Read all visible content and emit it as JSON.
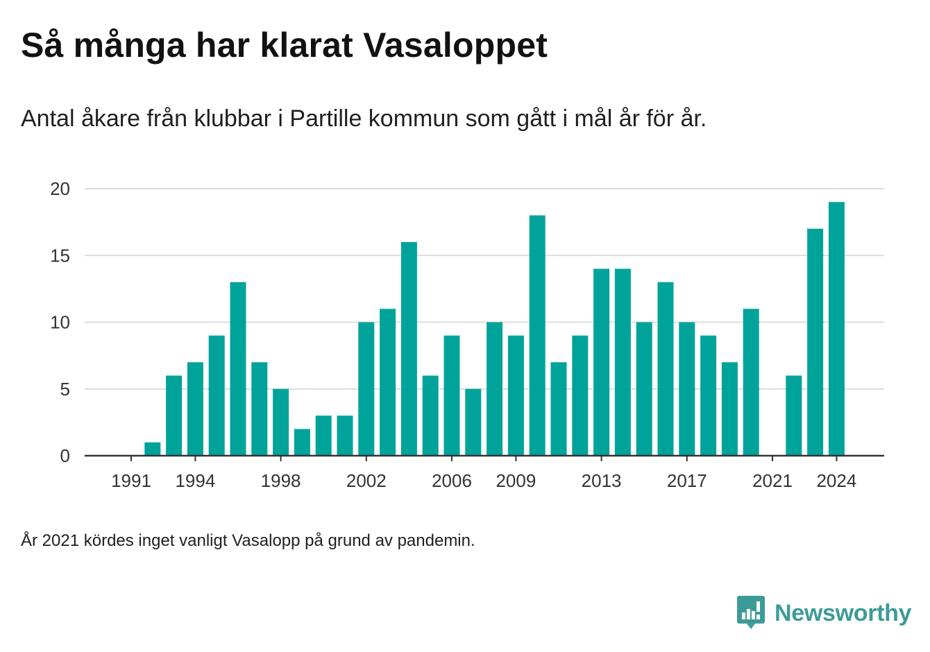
{
  "title": "Så många har klarat Vasaloppet",
  "subtitle": "Antal åkare från klubbar i Partille kommun som gått i mål år för år.",
  "note": "År 2021 kördes inget vanligt Vasalopp på grund av pandemin.",
  "brand": {
    "name": "Newsworthy",
    "icon": "newsworthy-logo-icon",
    "color": "#3d9b97"
  },
  "colors": {
    "bar": "#00a39a",
    "grid": "#dcdcdc",
    "axis": "#333333"
  },
  "chart_data": {
    "type": "bar",
    "categories": [
      1991,
      1992,
      1993,
      1994,
      1995,
      1996,
      1997,
      1998,
      1999,
      2000,
      2001,
      2002,
      2003,
      2004,
      2005,
      2006,
      2007,
      2008,
      2009,
      2010,
      2011,
      2012,
      2013,
      2014,
      2015,
      2016,
      2017,
      2018,
      2019,
      2020,
      2021,
      2022,
      2023,
      2024
    ],
    "values": [
      0,
      1,
      6,
      7,
      9,
      13,
      7,
      5,
      2,
      3,
      3,
      10,
      11,
      16,
      6,
      9,
      5,
      10,
      9,
      18,
      7,
      9,
      14,
      14,
      10,
      13,
      10,
      9,
      7,
      11,
      0,
      6,
      17,
      19
    ],
    "x_ticks": [
      "1991",
      "1994",
      "1998",
      "2002",
      "2006",
      "2009",
      "2013",
      "2017",
      "2021",
      "2024"
    ],
    "y_ticks": [
      "0",
      "5",
      "10",
      "15",
      "20"
    ],
    "ylim": [
      0,
      20
    ],
    "xlabel": "",
    "ylabel": "",
    "grid": true,
    "legend": "none"
  }
}
